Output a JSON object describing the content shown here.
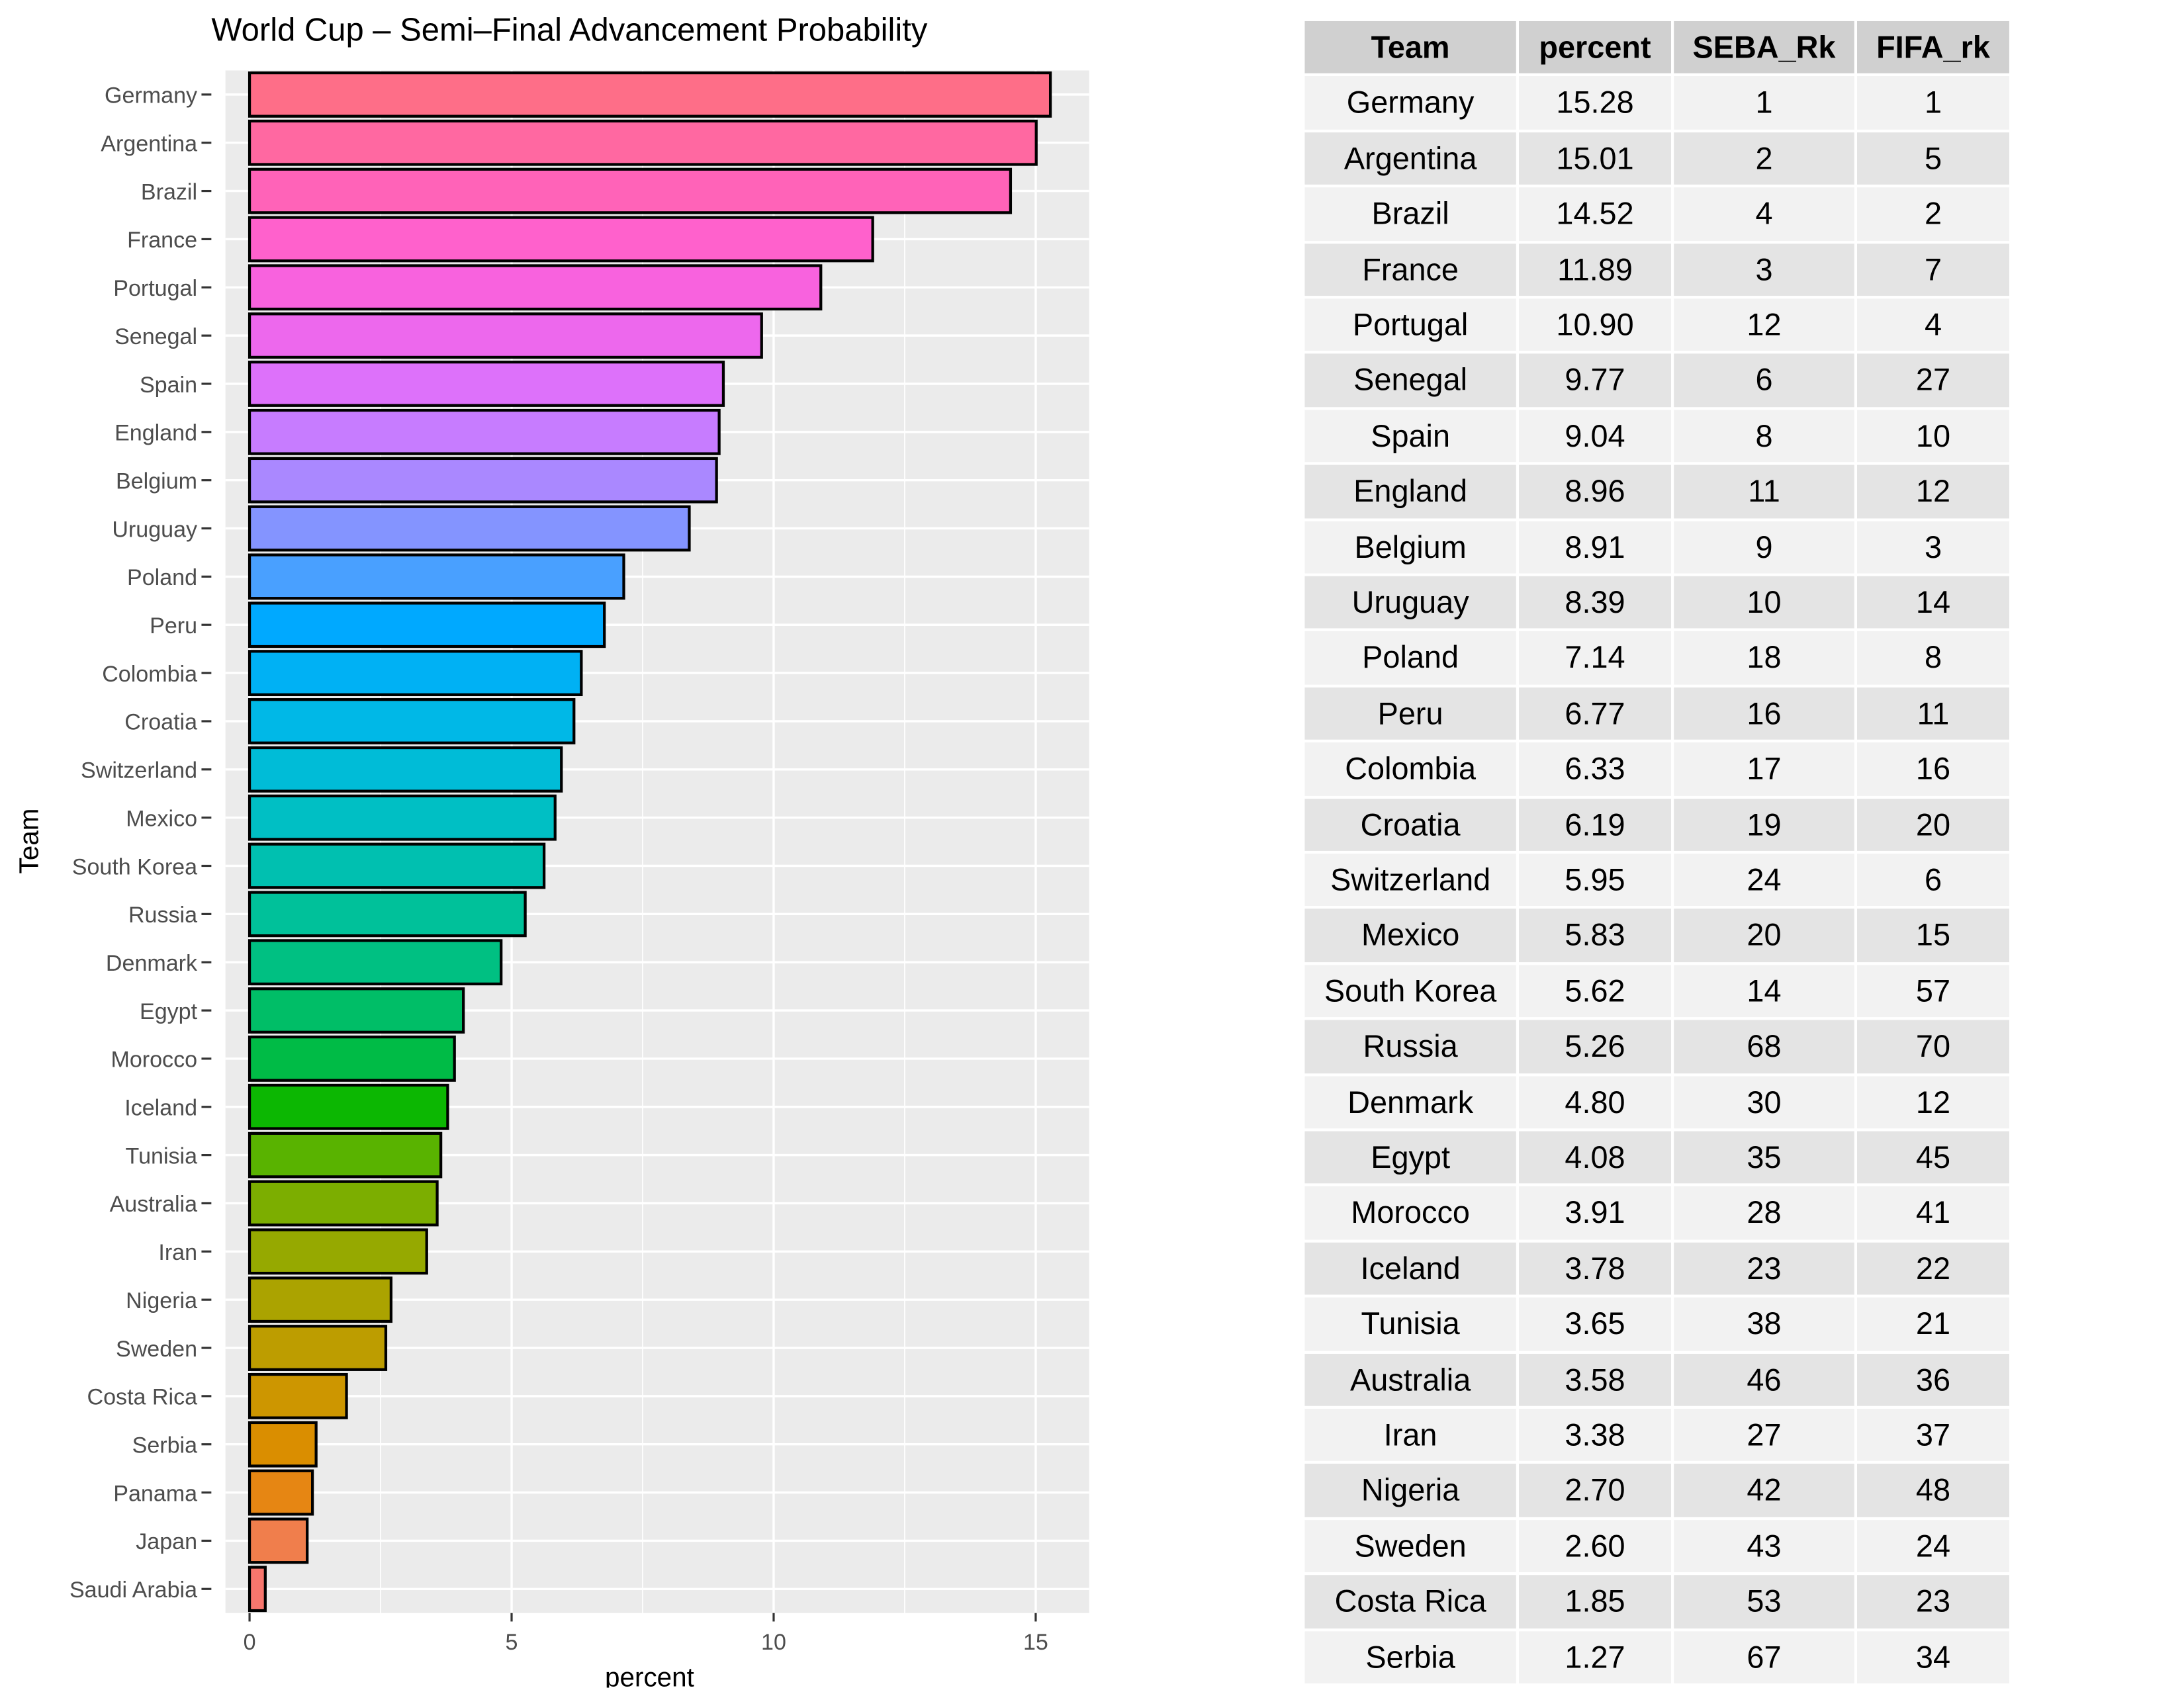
{
  "chart_data": {
    "type": "bar",
    "orientation": "horizontal",
    "title": "World Cup – Semi–Final Advancement Probability",
    "xlabel": "percent",
    "ylabel": "Team",
    "xlim": [
      -0.46,
      16.02
    ],
    "xticks": [
      0,
      5,
      10,
      15
    ],
    "xtick_labels": [
      "0",
      "5",
      "10",
      "15"
    ],
    "grid": true,
    "legend": "none",
    "categories": [
      "Germany",
      "Argentina",
      "Brazil",
      "France",
      "Portugal",
      "Senegal",
      "Spain",
      "England",
      "Belgium",
      "Uruguay",
      "Poland",
      "Peru",
      "Colombia",
      "Croatia",
      "Switzerland",
      "Mexico",
      "South Korea",
      "Russia",
      "Denmark",
      "Egypt",
      "Morocco",
      "Iceland",
      "Tunisia",
      "Australia",
      "Iran",
      "Nigeria",
      "Sweden",
      "Costa Rica",
      "Serbia",
      "Panama",
      "Japan",
      "Saudi Arabia"
    ],
    "values": [
      15.28,
      15.01,
      14.52,
      11.89,
      10.9,
      9.77,
      9.04,
      8.96,
      8.91,
      8.39,
      7.14,
      6.77,
      6.33,
      6.19,
      5.95,
      5.83,
      5.62,
      5.26,
      4.8,
      4.08,
      3.91,
      3.78,
      3.65,
      3.58,
      3.38,
      2.7,
      2.6,
      1.85,
      1.27,
      1.2,
      1.1,
      0.3
    ]
  },
  "table": {
    "headers": [
      "Team",
      "percent",
      "SEBA_Rk",
      "FIFA_rk"
    ],
    "rows": [
      [
        "Germany",
        "15.28",
        "1",
        "1"
      ],
      [
        "Argentina",
        "15.01",
        "2",
        "5"
      ],
      [
        "Brazil",
        "14.52",
        "4",
        "2"
      ],
      [
        "France",
        "11.89",
        "3",
        "7"
      ],
      [
        "Portugal",
        "10.90",
        "12",
        "4"
      ],
      [
        "Senegal",
        "9.77",
        "6",
        "27"
      ],
      [
        "Spain",
        "9.04",
        "8",
        "10"
      ],
      [
        "England",
        "8.96",
        "11",
        "12"
      ],
      [
        "Belgium",
        "8.91",
        "9",
        "3"
      ],
      [
        "Uruguay",
        "8.39",
        "10",
        "14"
      ],
      [
        "Poland",
        "7.14",
        "18",
        "8"
      ],
      [
        "Peru",
        "6.77",
        "16",
        "11"
      ],
      [
        "Colombia",
        "6.33",
        "17",
        "16"
      ],
      [
        "Croatia",
        "6.19",
        "19",
        "20"
      ],
      [
        "Switzerland",
        "5.95",
        "24",
        "6"
      ],
      [
        "Mexico",
        "5.83",
        "20",
        "15"
      ],
      [
        "South Korea",
        "5.62",
        "14",
        "57"
      ],
      [
        "Russia",
        "5.26",
        "68",
        "70"
      ],
      [
        "Denmark",
        "4.80",
        "30",
        "12"
      ],
      [
        "Egypt",
        "4.08",
        "35",
        "45"
      ],
      [
        "Morocco",
        "3.91",
        "28",
        "41"
      ],
      [
        "Iceland",
        "3.78",
        "23",
        "22"
      ],
      [
        "Tunisia",
        "3.65",
        "38",
        "21"
      ],
      [
        "Australia",
        "3.58",
        "46",
        "36"
      ],
      [
        "Iran",
        "3.38",
        "27",
        "37"
      ],
      [
        "Nigeria",
        "2.70",
        "42",
        "48"
      ],
      [
        "Sweden",
        "2.60",
        "43",
        "24"
      ],
      [
        "Costa Rica",
        "1.85",
        "53",
        "23"
      ],
      [
        "Serbia",
        "1.27",
        "67",
        "34"
      ]
    ]
  }
}
